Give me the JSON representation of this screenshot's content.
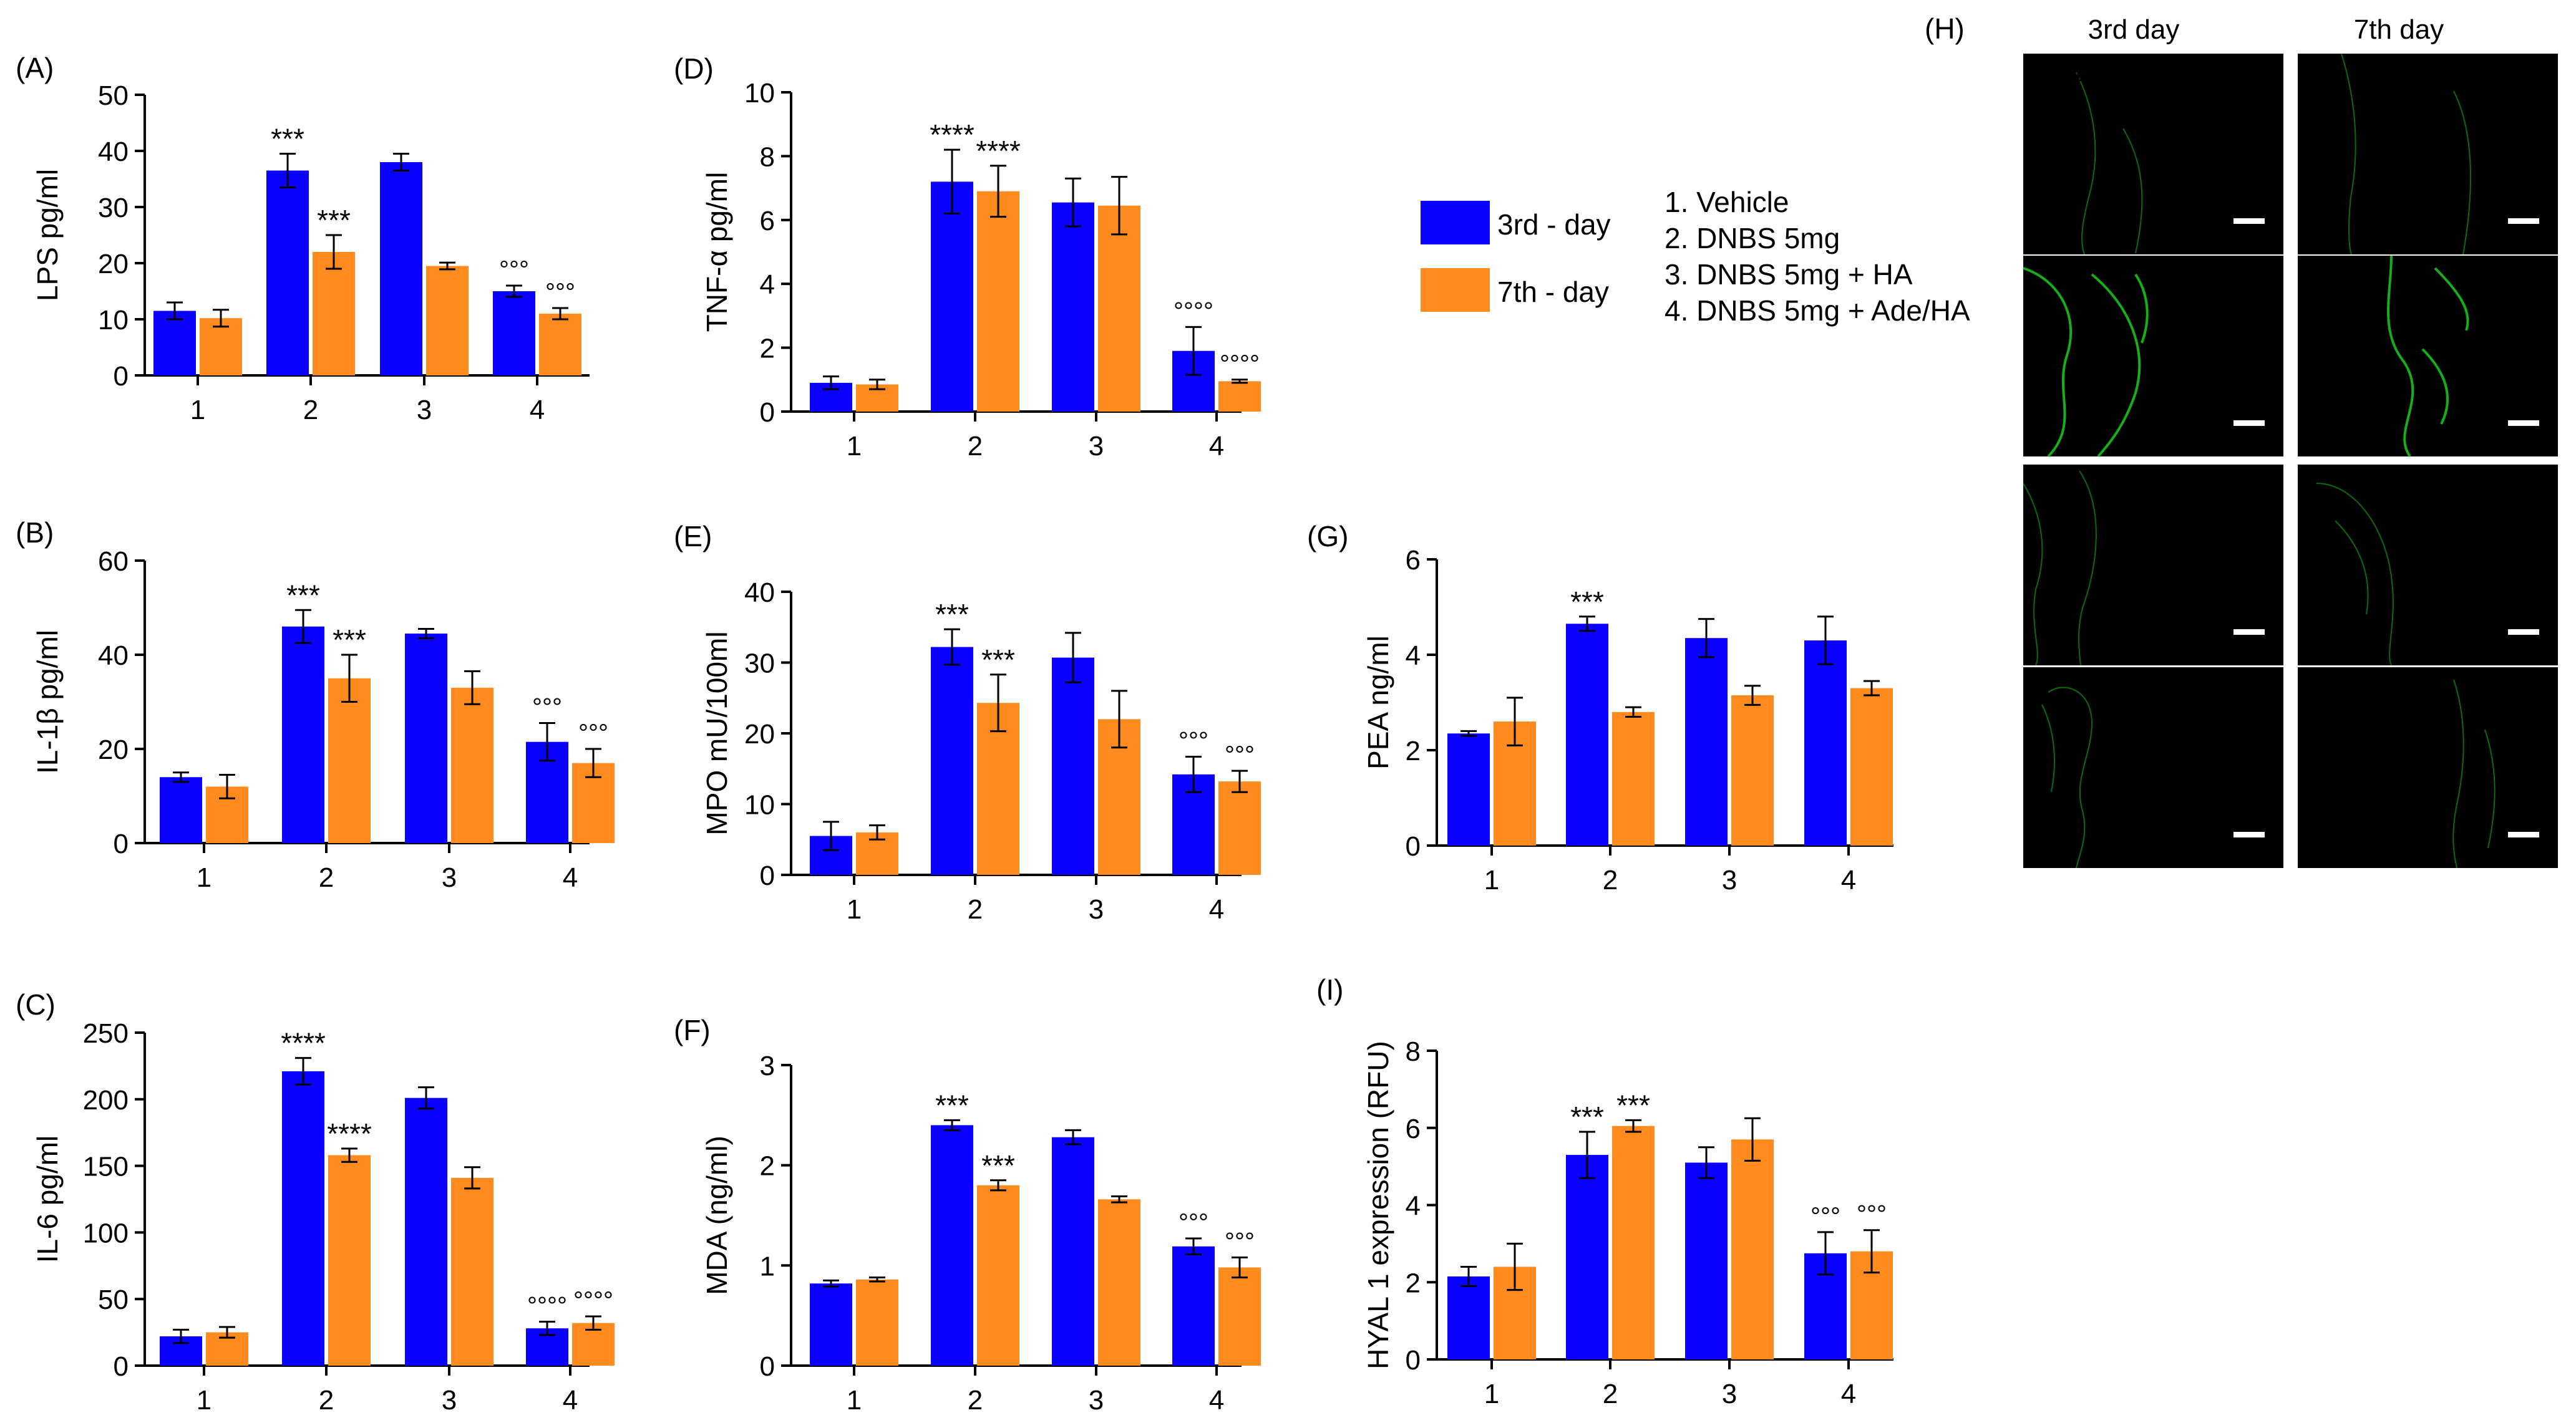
{
  "colors": {
    "day3": "#0a00ff",
    "day7": "#ff8a1e",
    "axis": "#000000",
    "fluor": "#17c21a"
  },
  "legend": {
    "series": [
      {
        "name": "3rd - day"
      },
      {
        "name": "7th - day"
      }
    ],
    "groups": [
      "1. Vehicle",
      "2. DNBS 5mg",
      "3. DNBS 5mg + HA",
      "4. DNBS 5mg + Ade/HA"
    ]
  },
  "chart_data": [
    {
      "panel": "(A)",
      "type": "bar",
      "ylabel": "LPS pg/ml",
      "categories": [
        "1",
        "2",
        "3",
        "4"
      ],
      "ylim": [
        0,
        50
      ],
      "yticks": [
        0,
        10,
        20,
        30,
        40,
        50
      ],
      "series": [
        {
          "name": "3rd - day",
          "values": [
            11.5,
            36.5,
            38,
            15
          ],
          "errors": [
            1.5,
            3,
            1.5,
            1
          ],
          "marks": [
            "",
            "***",
            "",
            "°°°"
          ]
        },
        {
          "name": "7th - day",
          "values": [
            10.2,
            22,
            19.5,
            11
          ],
          "errors": [
            1.5,
            3,
            0.6,
            1
          ],
          "marks": [
            "",
            "***",
            "",
            "°°°"
          ]
        }
      ]
    },
    {
      "panel": "(B)",
      "type": "bar",
      "ylabel": "IL-1β pg/ml",
      "categories": [
        "1",
        "2",
        "3",
        "4"
      ],
      "ylim": [
        0,
        60
      ],
      "yticks": [
        0,
        20,
        40,
        60
      ],
      "series": [
        {
          "name": "3rd - day",
          "values": [
            14,
            46,
            44.5,
            21.5
          ],
          "errors": [
            1,
            3.5,
            1,
            4
          ],
          "marks": [
            "",
            "***",
            "",
            "°°°"
          ]
        },
        {
          "name": "7th - day",
          "values": [
            12,
            35,
            33,
            17
          ],
          "errors": [
            2.5,
            5,
            3.5,
            3
          ],
          "marks": [
            "",
            "***",
            "",
            "°°°"
          ]
        }
      ]
    },
    {
      "panel": "(C)",
      "type": "bar",
      "ylabel": "IL-6 pg/ml",
      "categories": [
        "1",
        "2",
        "3",
        "4"
      ],
      "ylim": [
        0,
        250
      ],
      "yticks": [
        0,
        50,
        100,
        150,
        200,
        250
      ],
      "series": [
        {
          "name": "3rd - day",
          "values": [
            22,
            221,
            201,
            28
          ],
          "errors": [
            5,
            10,
            8,
            5
          ],
          "marks": [
            "",
            "****",
            "",
            "°°°°"
          ]
        },
        {
          "name": "7th - day",
          "values": [
            25,
            158,
            141,
            32
          ],
          "errors": [
            4,
            5,
            8,
            5
          ],
          "marks": [
            "",
            "****",
            "",
            "°°°°"
          ]
        }
      ]
    },
    {
      "panel": "(D)",
      "type": "bar",
      "ylabel": "TNF-α pg/ml",
      "categories": [
        "1",
        "2",
        "3",
        "4"
      ],
      "ylim": [
        0,
        10
      ],
      "yticks": [
        0,
        2,
        4,
        6,
        8,
        10
      ],
      "series": [
        {
          "name": "3rd - day",
          "values": [
            0.9,
            7.2,
            6.55,
            1.9
          ],
          "errors": [
            0.2,
            1,
            0.75,
            0.75
          ],
          "marks": [
            "",
            "****",
            "",
            "°°°°"
          ]
        },
        {
          "name": "7th - day",
          "values": [
            0.85,
            6.9,
            6.45,
            0.95
          ],
          "errors": [
            0.15,
            0.8,
            0.9,
            0.05
          ],
          "marks": [
            "",
            "****",
            "",
            "°°°°"
          ]
        }
      ]
    },
    {
      "panel": "(E)",
      "type": "bar",
      "ylabel": "MPO  mU/100ml",
      "categories": [
        "1",
        "2",
        "3",
        "4"
      ],
      "ylim": [
        0,
        40
      ],
      "yticks": [
        0,
        10,
        20,
        30,
        40
      ],
      "series": [
        {
          "name": "3rd - day",
          "values": [
            5.5,
            32.2,
            30.7,
            14.2
          ],
          "errors": [
            2,
            2.5,
            3.5,
            2.5
          ],
          "marks": [
            "",
            "***",
            "",
            "°°°"
          ]
        },
        {
          "name": "7th - day",
          "values": [
            6,
            24.3,
            22,
            13.2
          ],
          "errors": [
            1,
            4,
            4,
            1.5
          ],
          "marks": [
            "",
            "***",
            "",
            "°°°"
          ]
        }
      ]
    },
    {
      "panel": "(F)",
      "type": "bar",
      "ylabel": "MDA (ng/ml)",
      "categories": [
        "1",
        "2",
        "3",
        "4"
      ],
      "ylim": [
        0,
        3
      ],
      "yticks": [
        0,
        1,
        2,
        3
      ],
      "series": [
        {
          "name": "3rd - day",
          "values": [
            0.82,
            2.4,
            2.28,
            1.19
          ],
          "errors": [
            0.03,
            0.05,
            0.07,
            0.08
          ],
          "marks": [
            "",
            "***",
            "",
            "°°°"
          ]
        },
        {
          "name": "7th - day",
          "values": [
            0.86,
            1.8,
            1.66,
            0.98
          ],
          "errors": [
            0.02,
            0.05,
            0.03,
            0.1
          ],
          "marks": [
            "",
            "***",
            "",
            "°°°"
          ]
        }
      ]
    },
    {
      "panel": "(G)",
      "type": "bar",
      "ylabel": "PEA ng/ml",
      "categories": [
        "1",
        "2",
        "3",
        "4"
      ],
      "ylim": [
        0,
        6
      ],
      "yticks": [
        0,
        2,
        4,
        6
      ],
      "series": [
        {
          "name": "3rd - day",
          "values": [
            2.35,
            4.65,
            4.35,
            4.3
          ],
          "errors": [
            0.05,
            0.15,
            0.4,
            0.5
          ],
          "marks": [
            "",
            "***",
            "",
            ""
          ]
        },
        {
          "name": "7th - day",
          "values": [
            2.6,
            2.8,
            3.15,
            3.3
          ],
          "errors": [
            0.5,
            0.1,
            0.2,
            0.15
          ],
          "marks": [
            "",
            "",
            "",
            ""
          ]
        }
      ]
    },
    {
      "panel": "(I)",
      "type": "bar",
      "ylabel": "HYAL 1  expression (RFU)",
      "categories": [
        "1",
        "2",
        "3",
        "4"
      ],
      "ylim": [
        0,
        8
      ],
      "yticks": [
        0,
        2,
        4,
        6,
        8
      ],
      "series": [
        {
          "name": "3rd - day",
          "values": [
            2.15,
            5.3,
            5.1,
            2.75
          ],
          "errors": [
            0.25,
            0.6,
            0.4,
            0.55
          ],
          "marks": [
            "",
            "***",
            "",
            "°°°"
          ]
        },
        {
          "name": "7th - day",
          "values": [
            2.4,
            6.05,
            5.7,
            2.8
          ],
          "errors": [
            0.6,
            0.15,
            0.55,
            0.55
          ],
          "marks": [
            "",
            "***",
            "",
            "°°°"
          ]
        }
      ]
    }
  ],
  "micrograph": {
    "panel": "(H)",
    "columns": [
      "3rd day",
      "7th day"
    ],
    "stain": "HYAL 1",
    "rows": [
      "1.",
      "2.",
      "3.",
      "4."
    ]
  }
}
